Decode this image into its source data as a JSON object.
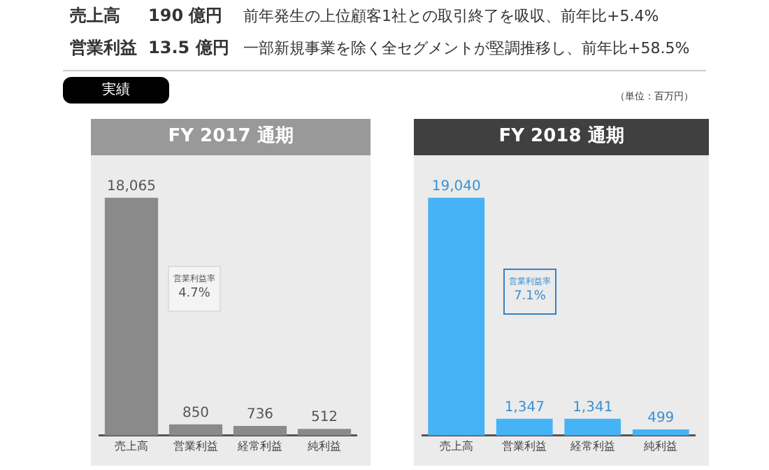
{
  "chart_data": [
    {
      "type": "other",
      "annotations": [
        "売上高",
        "190 億円",
        "前年発生の上位顧客1社との取引終了を吸収、前年比+5.4%",
        "営業利益",
        "13.5 億円",
        "一部新規事業を除く全セグメントが堅調推移し、前年比+58.5%",
        "実績",
        "（単位：百万円）"
      ]
    },
    {
      "type": "bar",
      "title": "FY 2017 通期",
      "categories": [
        "売上高",
        "営業利益",
        "経常利益",
        "純利益"
      ],
      "values": [
        18065,
        850,
        736,
        512
      ],
      "value_labels": [
        "18,065",
        "850",
        "736",
        "512"
      ],
      "color": "#8a8a8a",
      "annotations": [
        "営業利益率",
        "4.7%"
      ]
    },
    {
      "type": "bar",
      "title": "FY 2018 通期",
      "categories": [
        "売上高",
        "営業利益",
        "経常利益",
        "純利益"
      ],
      "values": [
        19040,
        1347,
        1341,
        499
      ],
      "value_labels": [
        "19,040",
        "1,347",
        "1,341",
        "499"
      ],
      "color": "#45b3f5",
      "annotations": [
        "営業利益率",
        "7.1%"
      ]
    }
  ]
}
